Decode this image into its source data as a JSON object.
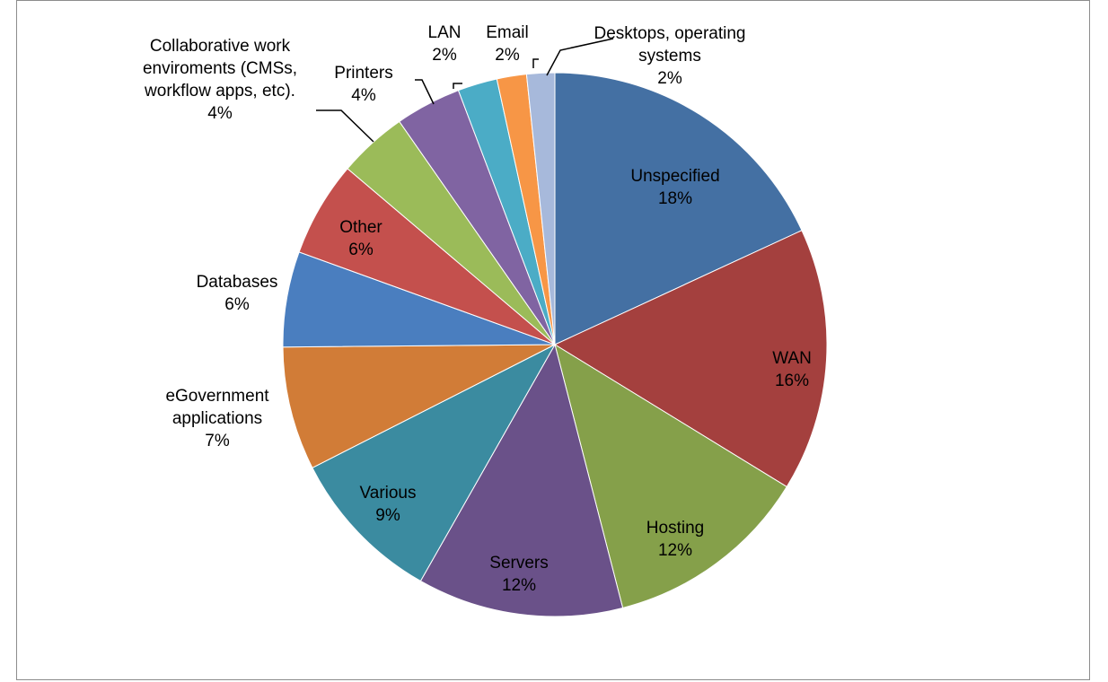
{
  "chart_data": {
    "type": "pie",
    "title": "",
    "start_angle": "12 o'clock",
    "direction": "clockwise",
    "slices": [
      {
        "label": "Unspecified",
        "pct_label": "18%",
        "value": 18.5,
        "color": "#4470A3"
      },
      {
        "label": "WAN",
        "pct_label": "16%",
        "value": 16.0,
        "color": "#A4403E"
      },
      {
        "label": "Hosting",
        "pct_label": "12%",
        "value": 12.5,
        "color": "#85A04A"
      },
      {
        "label": "Servers",
        "pct_label": "12%",
        "value": 12.5,
        "color": "#6A5189"
      },
      {
        "label": "Various",
        "pct_label": "9%",
        "value": 9.5,
        "color": "#3B8BA0"
      },
      {
        "label": "eGovernment applications",
        "pct_label": "7%",
        "value": 7.5,
        "color": "#D17C37"
      },
      {
        "label": "Databases",
        "pct_label": "6%",
        "value": 5.8,
        "color": "#4A7EBF"
      },
      {
        "label": "Other",
        "pct_label": "6%",
        "value": 5.8,
        "color": "#C4504D"
      },
      {
        "label": "Collaborative work enviroments (CMSs, workflow apps, etc).",
        "pct_label": "4%",
        "value": 4.2,
        "color": "#9BBB59"
      },
      {
        "label": "Printers",
        "pct_label": "4%",
        "value": 4.0,
        "color": "#8064A2"
      },
      {
        "label": "LAN",
        "pct_label": "2%",
        "value": 2.4,
        "color": "#4BACC6"
      },
      {
        "label": "Email",
        "pct_label": "2%",
        "value": 1.8,
        "color": "#F79646"
      },
      {
        "label": "Desktops, operating systems",
        "pct_label": "2%",
        "value": 1.7,
        "color": "#A7B9DB"
      }
    ]
  }
}
